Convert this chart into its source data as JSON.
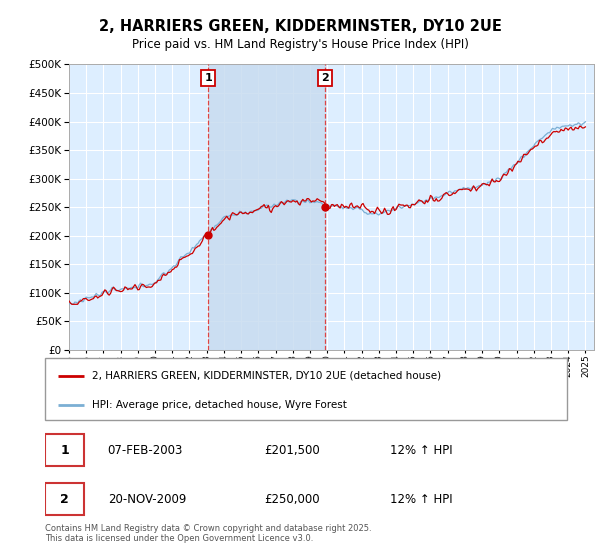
{
  "title": "2, HARRIERS GREEN, KIDDERMINSTER, DY10 2UE",
  "subtitle": "Price paid vs. HM Land Registry's House Price Index (HPI)",
  "plot_bg_color": "#ddeeff",
  "grid_color": "#ffffff",
  "red_line_color": "#cc0000",
  "blue_line_color": "#7bafd4",
  "dashed_line_color": "#dd4444",
  "shade_color": "#c8dcf0",
  "ylim": [
    0,
    500000
  ],
  "yticks": [
    0,
    50000,
    100000,
    150000,
    200000,
    250000,
    300000,
    350000,
    400000,
    450000,
    500000
  ],
  "purchase1_year_f": 2003.083,
  "purchase1_price": 201500,
  "purchase2_year_f": 2009.875,
  "purchase2_price": 250000,
  "legend_red": "2, HARRIERS GREEN, KIDDERMINSTER, DY10 2UE (detached house)",
  "legend_blue": "HPI: Average price, detached house, Wyre Forest",
  "annotation1_label": "1",
  "annotation1_date": "07-FEB-2003",
  "annotation1_price": "£201,500",
  "annotation1_hpi": "12% ↑ HPI",
  "annotation2_label": "2",
  "annotation2_date": "20-NOV-2009",
  "annotation2_price": "£250,000",
  "annotation2_hpi": "12% ↑ HPI",
  "footer": "Contains HM Land Registry data © Crown copyright and database right 2025.\nThis data is licensed under the Open Government Licence v3.0."
}
